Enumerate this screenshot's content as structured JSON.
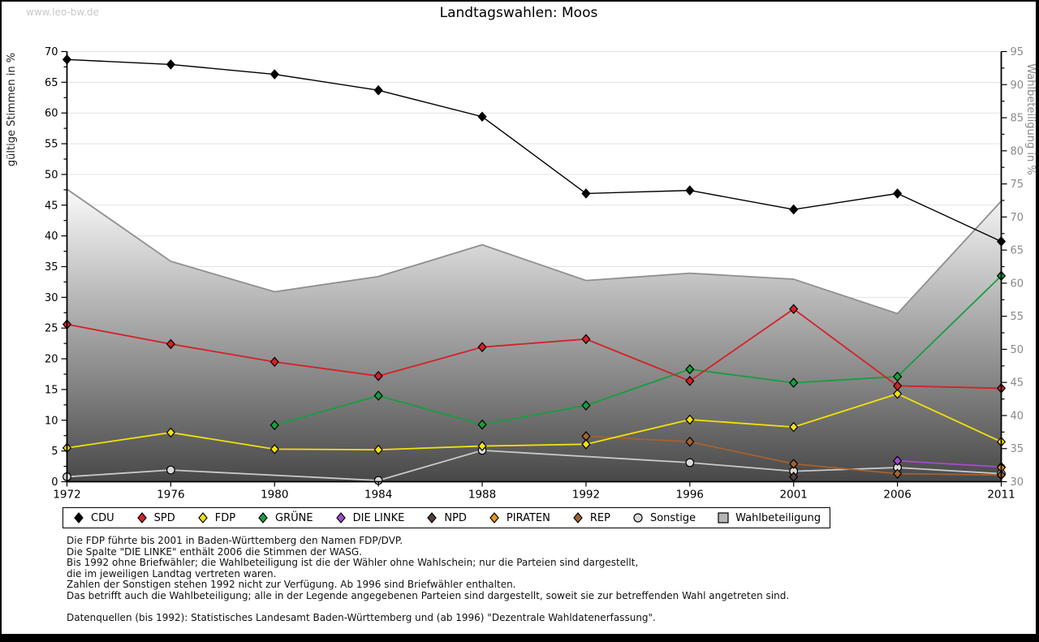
{
  "watermark": "www.leo-bw.de",
  "title": "Landtagswahlen: Moos",
  "chart_data": {
    "type": "line",
    "x": [
      1972,
      1976,
      1980,
      1984,
      1988,
      1992,
      1996,
      2001,
      2006,
      2011
    ],
    "left_axis": {
      "label": "gültige Stimmen in %",
      "min": 0,
      "max": 70,
      "tick_step": 5,
      "minor_step": 2.5
    },
    "right_axis": {
      "label": "Wahlbeteiligung in %",
      "min": 30,
      "max": 95,
      "tick_step": 5,
      "minor_step": 2.5
    },
    "grid": true,
    "legend_position": "bottom",
    "legend": [
      "CDU",
      "SPD",
      "FDP",
      "GRÜNE",
      "DIE LINKE",
      "NPD",
      "PIRATEN",
      "REP",
      "Sonstige",
      "Wahlbeteiligung"
    ],
    "series": [
      {
        "name": "Sonstige",
        "color": "#c9c9c9",
        "fill": "#dadada",
        "marker": "circle",
        "values": [
          0.8,
          1.9,
          null,
          0.2,
          5.1,
          null,
          3.1,
          1.7,
          2.3,
          1.3
        ]
      },
      {
        "name": "REP",
        "color": "#a5622d",
        "marker": "diamond",
        "values": [
          null,
          null,
          null,
          null,
          null,
          7.4,
          6.5,
          2.9,
          1.3,
          1.1
        ]
      },
      {
        "name": "NPD",
        "color": "#54413a",
        "marker": "diamond",
        "values": [
          null,
          null,
          null,
          null,
          null,
          null,
          null,
          0.8,
          null,
          null
        ]
      },
      {
        "name": "DIE LINKE",
        "color": "#a64ad1",
        "marker": "diamond",
        "values": [
          null,
          null,
          null,
          null,
          null,
          null,
          null,
          null,
          3.4,
          2.4
        ]
      },
      {
        "name": "PIRATEN",
        "color": "#ee9121",
        "marker": "diamond",
        "values": [
          null,
          null,
          null,
          null,
          null,
          null,
          null,
          null,
          null,
          2.3
        ]
      },
      {
        "name": "GRÜNE",
        "color": "#169e3e",
        "marker": "diamond",
        "values": [
          null,
          null,
          9.2,
          14.0,
          9.3,
          12.4,
          18.3,
          16.1,
          17.1,
          33.5
        ]
      },
      {
        "name": "FDP",
        "color": "#f2e205",
        "marker": "diamond",
        "values": [
          5.5,
          8.0,
          5.3,
          5.2,
          5.8,
          6.1,
          10.1,
          8.9,
          14.3,
          6.5
        ]
      },
      {
        "name": "SPD",
        "color": "#d42127",
        "marker": "diamond",
        "values": [
          25.6,
          22.4,
          19.5,
          17.2,
          21.9,
          23.2,
          16.4,
          28.1,
          15.6,
          15.2
        ]
      },
      {
        "name": "CDU",
        "color": "#000000",
        "marker": "diamond",
        "values": [
          68.7,
          67.9,
          66.3,
          63.7,
          59.4,
          46.9,
          47.4,
          44.3,
          46.9,
          39.1
        ]
      }
    ],
    "participation": {
      "name": "Wahlbeteiligung",
      "axis": "right",
      "stroke": "#8f8f8f",
      "fill_top": "#fdfdfd",
      "fill_bottom": "#484848",
      "legend_swatch": "#b5b5b5",
      "values": [
        74.2,
        63.3,
        58.7,
        61.0,
        65.8,
        60.4,
        61.5,
        60.6,
        55.4,
        72.4
      ]
    }
  },
  "footnotes": [
    "Die FDP führte bis 2001 in Baden-Württemberg den Namen FDP/DVP.",
    "Die Spalte \"DIE LINKE\" enthält 2006 die Stimmen der WASG.",
    "Bis 1992 ohne Briefwähler; die Wahlbeteiligung ist die der Wähler ohne Wahlschein; nur die Parteien sind dargestellt,",
    "die im jeweiligen Landtag vertreten waren.",
    "Zahlen der Sonstigen stehen 1992 nicht zur Verfügung. Ab 1996 sind Briefwähler enthalten.",
    "Das betrifft auch die Wahlbeteiligung; alle in der Legende angegebenen Parteien sind dargestellt, soweit sie zur betreffenden Wahl angetreten sind.",
    "",
    "Datenquellen (bis 1992): Statistisches Landesamt Baden-Württemberg und (ab 1996) \"Dezentrale Wahldatenerfassung\"."
  ],
  "colors": {
    "grid": "#e3e3e3",
    "axis": "#000000",
    "right_axis_text": "#8a8a8a",
    "left_axis_text": "#000000",
    "watermark": "#c9c9c9"
  }
}
